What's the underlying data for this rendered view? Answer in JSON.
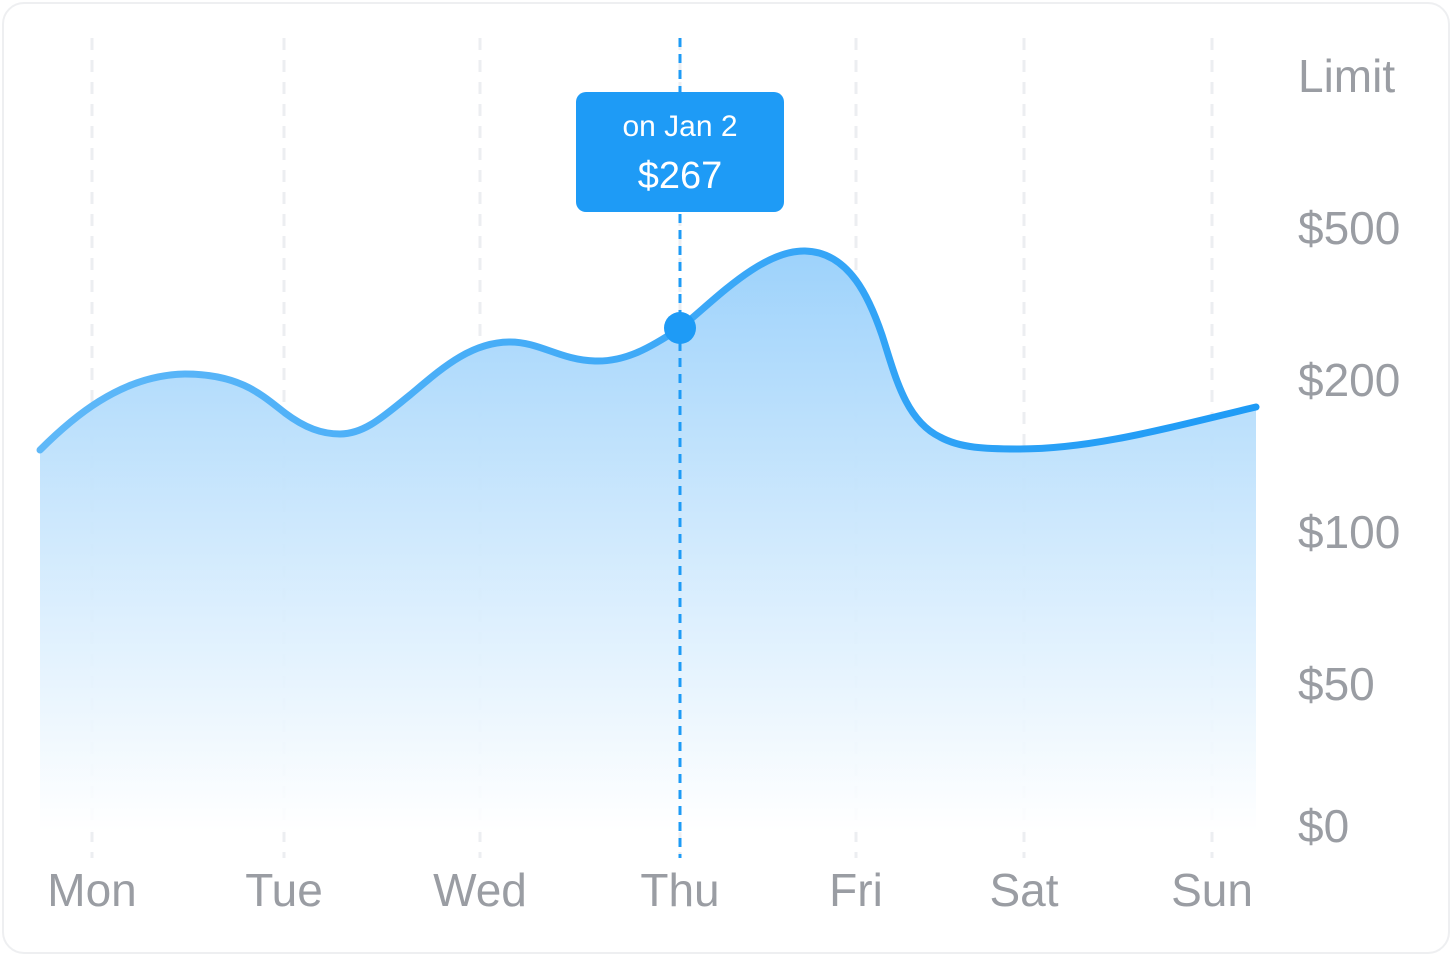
{
  "chart_data": {
    "type": "area",
    "categories": [
      "Mon",
      "Tue",
      "Wed",
      "Thu",
      "Fri",
      "Sat",
      "Sun"
    ],
    "y_ticks": [
      "Limit",
      "$500",
      "$200",
      "$100",
      "$50",
      "$0"
    ],
    "tooltip": {
      "date": "on Jan 2",
      "value": "$267",
      "category": "Thu"
    },
    "line_color": "#1e9bf6",
    "fill_color": "#9dd2fb",
    "grid": "vertical-dashed"
  }
}
